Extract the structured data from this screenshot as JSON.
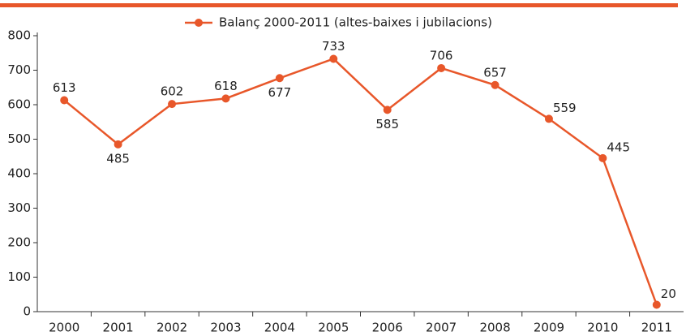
{
  "chart_data": {
    "type": "line",
    "categories": [
      "2000",
      "2001",
      "2002",
      "2003",
      "2004",
      "2005",
      "2006",
      "2007",
      "2008",
      "2009",
      "2010",
      "2011"
    ],
    "series": [
      {
        "name": "Balanç 2000-2011 (altes-baixes i jubilacions)",
        "color": "#e8572a",
        "values": [
          613,
          485,
          602,
          618,
          677,
          733,
          585,
          706,
          657,
          559,
          445,
          20
        ]
      }
    ],
    "ylim": [
      0,
      800
    ],
    "yticks": [
      0,
      100,
      200,
      300,
      400,
      500,
      600,
      700,
      800
    ],
    "grid": false,
    "legend": "top"
  }
}
